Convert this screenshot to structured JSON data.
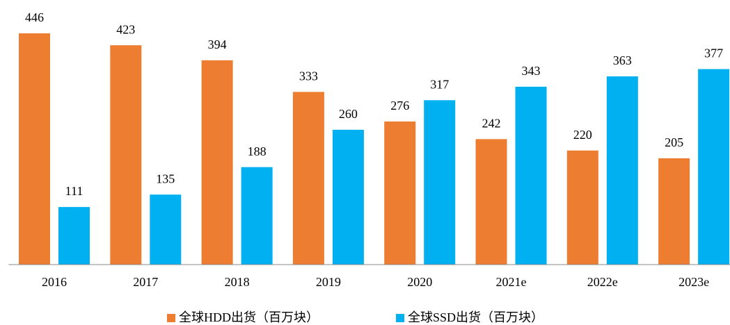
{
  "chart_data": {
    "type": "bar",
    "categories": [
      "2016",
      "2017",
      "2018",
      "2019",
      "2020",
      "2021e",
      "2022e",
      "2023e"
    ],
    "series": [
      {
        "name": "全球HDD出货（百万块）",
        "color": "#ED7D31",
        "values": [
          446,
          423,
          394,
          333,
          276,
          242,
          220,
          205
        ]
      },
      {
        "name": "全球SSD出货（百万块）",
        "color": "#00B0F0",
        "values": [
          111,
          135,
          188,
          260,
          317,
          343,
          363,
          377
        ]
      }
    ],
    "ylim": [
      0,
      450
    ]
  }
}
